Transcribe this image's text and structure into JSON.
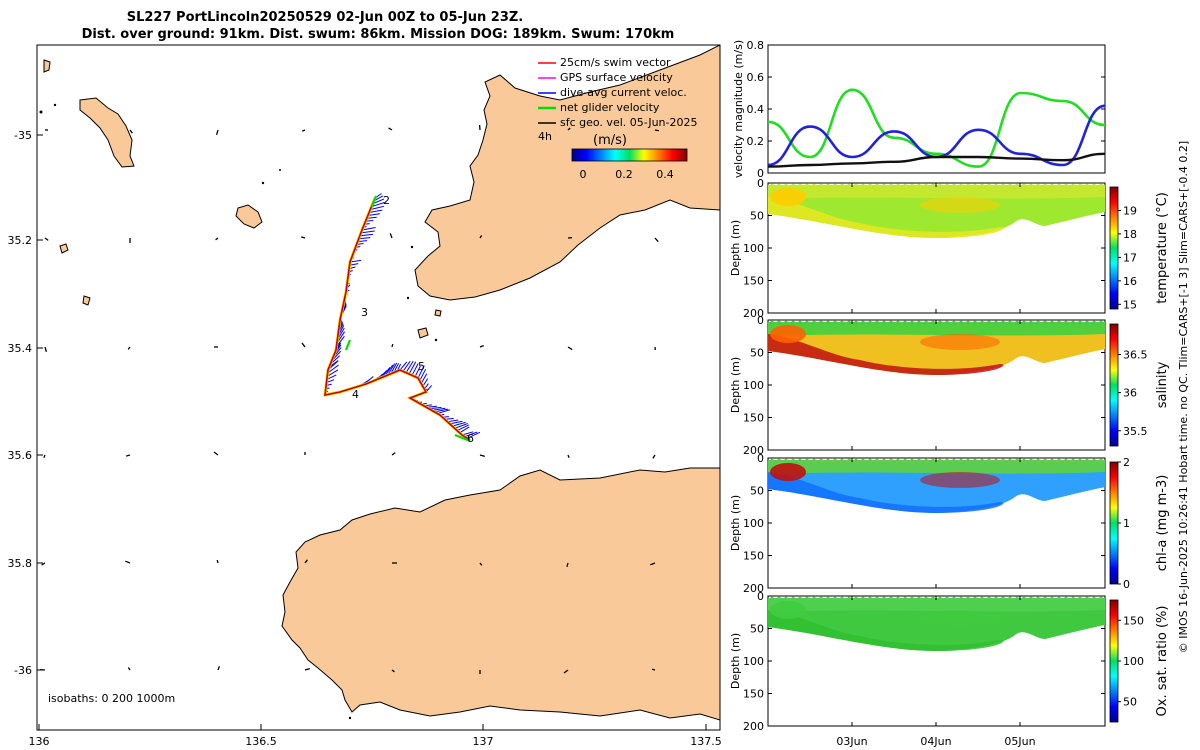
{
  "title": {
    "line1": "SL227 PortLincoln20250529 02-Jun 00Z to 05-Jun 23Z.",
    "line2": "Dist. over ground: 91km. Dist. swum: 86km. Mission DOG: 189km. Swum: 170km"
  },
  "map": {
    "lon_ticks": [
      "136",
      "136.5",
      "137",
      "137.5"
    ],
    "lat_ticks": [
      "-35",
      "35.2",
      "35.4",
      "35.6",
      "35.8",
      "-36"
    ],
    "isobaths_label": "isobaths: 0   200  1000m",
    "waypoints": [
      "2",
      "3",
      "4",
      "5",
      "6"
    ],
    "legend": {
      "items": [
        {
          "label": "25cm/s swim vector",
          "color": "#ff0000"
        },
        {
          "label": "GPS surface velocity",
          "color": "#ff00ff"
        },
        {
          "label": "dive-avg current veloc.",
          "color": "#0000ff"
        },
        {
          "label": "net glider velocity",
          "color": "#00dd00"
        },
        {
          "label": "sfc geo. vel. 05-Jun-2025",
          "color": "#000000"
        }
      ],
      "interval": "4h",
      "colorbar_title": "(m/s)",
      "colorbar_ticks": [
        "0",
        "0.2",
        "0.4"
      ]
    },
    "colors": {
      "land": "#f9c999",
      "track_blue": "#0000ff",
      "track_red": "#c80000",
      "track_yellow": "#f5d800",
      "track_green": "#00dd00"
    }
  },
  "chart_data": [
    {
      "type": "line",
      "ylabel": "velocity magnitude (m/s)",
      "ylim": [
        0,
        0.8
      ],
      "yticks": [
        "0",
        "0.2",
        "0.4",
        "0.6",
        "0.8"
      ],
      "x": [
        "02-Jun 00Z",
        "02-Jun 12Z",
        "03-Jun 00Z",
        "03-Jun 12Z",
        "04-Jun 00Z",
        "04-Jun 12Z",
        "05-Jun 00Z",
        "05-Jun 12Z",
        "05-Jun 23Z"
      ],
      "series": [
        {
          "name": "net glider velocity",
          "color": "#22dd22",
          "values": [
            0.32,
            0.1,
            0.52,
            0.22,
            0.12,
            0.04,
            0.5,
            0.45,
            0.3
          ]
        },
        {
          "name": "dive-avg current veloc.",
          "color": "#2222dd",
          "values": [
            0.05,
            0.29,
            0.1,
            0.26,
            0.1,
            0.27,
            0.12,
            0.05,
            0.42
          ]
        },
        {
          "name": "sfc geo. vel.",
          "color": "#111111",
          "values": [
            0.04,
            0.05,
            0.06,
            0.07,
            0.1,
            0.1,
            0.09,
            0.08,
            0.12
          ]
        }
      ]
    },
    {
      "type": "heatmap",
      "ylabel": "Depth (m)",
      "ylim": [
        0,
        200
      ],
      "yticks": [
        "0",
        "50",
        "100",
        "150",
        "200"
      ],
      "colorbar_label": "temperature (°C)",
      "colorbar_ticks": [
        "15",
        "16",
        "17",
        "18",
        "19"
      ],
      "colorbar_range": [
        14.8,
        20
      ]
    },
    {
      "type": "heatmap",
      "ylabel": "Depth (m)",
      "ylim": [
        0,
        200
      ],
      "yticks": [
        "0",
        "50",
        "100",
        "150",
        "200"
      ],
      "colorbar_label": "salinity",
      "colorbar_ticks": [
        "35.5",
        "36",
        "36.5"
      ],
      "colorbar_range": [
        35.3,
        36.9
      ]
    },
    {
      "type": "heatmap",
      "ylabel": "Depth (m)",
      "ylim": [
        0,
        200
      ],
      "yticks": [
        "0",
        "50",
        "100",
        "150",
        "200"
      ],
      "colorbar_label": "chl-a (mg m-3)",
      "colorbar_ticks": [
        "0",
        "1",
        "2"
      ],
      "colorbar_range": [
        0,
        2
      ]
    },
    {
      "type": "heatmap",
      "ylabel": "Depth (m)",
      "ylim": [
        0,
        200
      ],
      "yticks": [
        "0",
        "50",
        "100",
        "150",
        "200"
      ],
      "colorbar_label": "Ox. sat. ratio (%)",
      "colorbar_ticks": [
        "50",
        "100",
        "150"
      ],
      "colorbar_range": [
        25,
        175
      ]
    }
  ],
  "time_axis": {
    "labels": [
      "03Jun",
      "04Jun",
      "05Jun"
    ]
  },
  "footer_note": "© IMOS 16-Jun-2025 10:26:41 Hobart time. no QC. Tlim=CARS+[-1 3] Slim=CARS+[-0.4 0.2]"
}
